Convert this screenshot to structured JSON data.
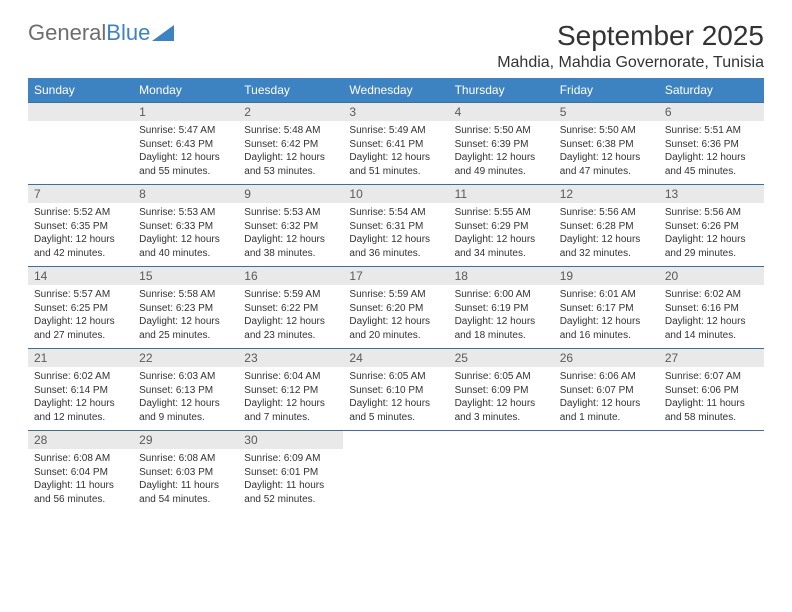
{
  "brand": {
    "part1": "General",
    "part2": "Blue"
  },
  "title": {
    "month": "September 2025",
    "location": "Mahdia, Mahdia Governorate, Tunisia"
  },
  "colors": {
    "header_bg": "#3d83c2",
    "header_text": "#ffffff",
    "daynum_bg": "#e9e9e9",
    "daynum_text": "#5a5a5a",
    "row_border": "#3d6f9a",
    "body_text": "#333333",
    "brand_gray": "#6d6d6d",
    "brand_blue": "#3d83c2"
  },
  "weekdays": [
    "Sunday",
    "Monday",
    "Tuesday",
    "Wednesday",
    "Thursday",
    "Friday",
    "Saturday"
  ],
  "weeks": [
    [
      null,
      {
        "n": "1",
        "sr": "5:47 AM",
        "ss": "6:43 PM",
        "dl": "12 hours and 55 minutes."
      },
      {
        "n": "2",
        "sr": "5:48 AM",
        "ss": "6:42 PM",
        "dl": "12 hours and 53 minutes."
      },
      {
        "n": "3",
        "sr": "5:49 AM",
        "ss": "6:41 PM",
        "dl": "12 hours and 51 minutes."
      },
      {
        "n": "4",
        "sr": "5:50 AM",
        "ss": "6:39 PM",
        "dl": "12 hours and 49 minutes."
      },
      {
        "n": "5",
        "sr": "5:50 AM",
        "ss": "6:38 PM",
        "dl": "12 hours and 47 minutes."
      },
      {
        "n": "6",
        "sr": "5:51 AM",
        "ss": "6:36 PM",
        "dl": "12 hours and 45 minutes."
      }
    ],
    [
      {
        "n": "7",
        "sr": "5:52 AM",
        "ss": "6:35 PM",
        "dl": "12 hours and 42 minutes."
      },
      {
        "n": "8",
        "sr": "5:53 AM",
        "ss": "6:33 PM",
        "dl": "12 hours and 40 minutes."
      },
      {
        "n": "9",
        "sr": "5:53 AM",
        "ss": "6:32 PM",
        "dl": "12 hours and 38 minutes."
      },
      {
        "n": "10",
        "sr": "5:54 AM",
        "ss": "6:31 PM",
        "dl": "12 hours and 36 minutes."
      },
      {
        "n": "11",
        "sr": "5:55 AM",
        "ss": "6:29 PM",
        "dl": "12 hours and 34 minutes."
      },
      {
        "n": "12",
        "sr": "5:56 AM",
        "ss": "6:28 PM",
        "dl": "12 hours and 32 minutes."
      },
      {
        "n": "13",
        "sr": "5:56 AM",
        "ss": "6:26 PM",
        "dl": "12 hours and 29 minutes."
      }
    ],
    [
      {
        "n": "14",
        "sr": "5:57 AM",
        "ss": "6:25 PM",
        "dl": "12 hours and 27 minutes."
      },
      {
        "n": "15",
        "sr": "5:58 AM",
        "ss": "6:23 PM",
        "dl": "12 hours and 25 minutes."
      },
      {
        "n": "16",
        "sr": "5:59 AM",
        "ss": "6:22 PM",
        "dl": "12 hours and 23 minutes."
      },
      {
        "n": "17",
        "sr": "5:59 AM",
        "ss": "6:20 PM",
        "dl": "12 hours and 20 minutes."
      },
      {
        "n": "18",
        "sr": "6:00 AM",
        "ss": "6:19 PM",
        "dl": "12 hours and 18 minutes."
      },
      {
        "n": "19",
        "sr": "6:01 AM",
        "ss": "6:17 PM",
        "dl": "12 hours and 16 minutes."
      },
      {
        "n": "20",
        "sr": "6:02 AM",
        "ss": "6:16 PM",
        "dl": "12 hours and 14 minutes."
      }
    ],
    [
      {
        "n": "21",
        "sr": "6:02 AM",
        "ss": "6:14 PM",
        "dl": "12 hours and 12 minutes."
      },
      {
        "n": "22",
        "sr": "6:03 AM",
        "ss": "6:13 PM",
        "dl": "12 hours and 9 minutes."
      },
      {
        "n": "23",
        "sr": "6:04 AM",
        "ss": "6:12 PM",
        "dl": "12 hours and 7 minutes."
      },
      {
        "n": "24",
        "sr": "6:05 AM",
        "ss": "6:10 PM",
        "dl": "12 hours and 5 minutes."
      },
      {
        "n": "25",
        "sr": "6:05 AM",
        "ss": "6:09 PM",
        "dl": "12 hours and 3 minutes."
      },
      {
        "n": "26",
        "sr": "6:06 AM",
        "ss": "6:07 PM",
        "dl": "12 hours and 1 minute."
      },
      {
        "n": "27",
        "sr": "6:07 AM",
        "ss": "6:06 PM",
        "dl": "11 hours and 58 minutes."
      }
    ],
    [
      {
        "n": "28",
        "sr": "6:08 AM",
        "ss": "6:04 PM",
        "dl": "11 hours and 56 minutes."
      },
      {
        "n": "29",
        "sr": "6:08 AM",
        "ss": "6:03 PM",
        "dl": "11 hours and 54 minutes."
      },
      {
        "n": "30",
        "sr": "6:09 AM",
        "ss": "6:01 PM",
        "dl": "11 hours and 52 minutes."
      },
      null,
      null,
      null,
      null
    ]
  ],
  "labels": {
    "sunrise": "Sunrise:",
    "sunset": "Sunset:",
    "daylight": "Daylight:"
  }
}
